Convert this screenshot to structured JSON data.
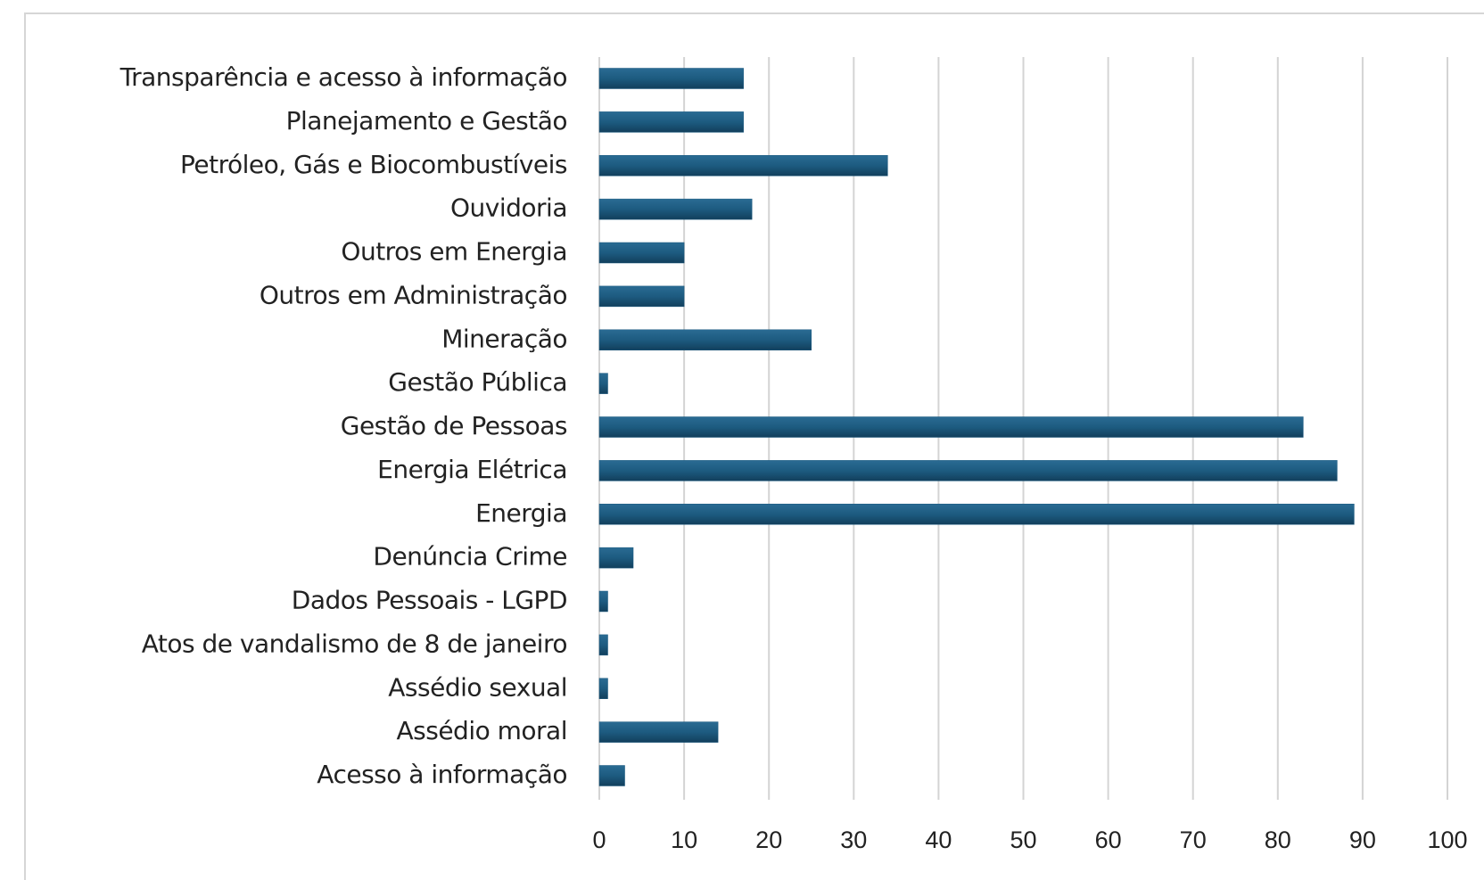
{
  "chart_data": {
    "type": "barh",
    "categories": [
      "Transparência e acesso à informação",
      "Planejamento e Gestão",
      "Petróleo, Gás e Biocombustíveis",
      "Ouvidoria",
      "Outros em Energia",
      "Outros em Administração",
      "Mineração",
      "Gestão Pública",
      "Gestão de Pessoas",
      "Energia Elétrica",
      "Energia",
      "Denúncia Crime",
      "Dados Pessoais - LGPD",
      "Atos de vandalismo de 8 de janeiro",
      "Assédio sexual",
      "Assédio moral",
      "Acesso à informação"
    ],
    "values": [
      17,
      17,
      34,
      18,
      10,
      10,
      25,
      1,
      83,
      87,
      89,
      4,
      1,
      1,
      1,
      14,
      3
    ],
    "color": "#1d5b80",
    "xlim": [
      0,
      100
    ],
    "xticks": [
      0,
      10,
      20,
      30,
      40,
      50,
      60,
      70,
      80,
      90,
      100
    ],
    "grid": true
  }
}
